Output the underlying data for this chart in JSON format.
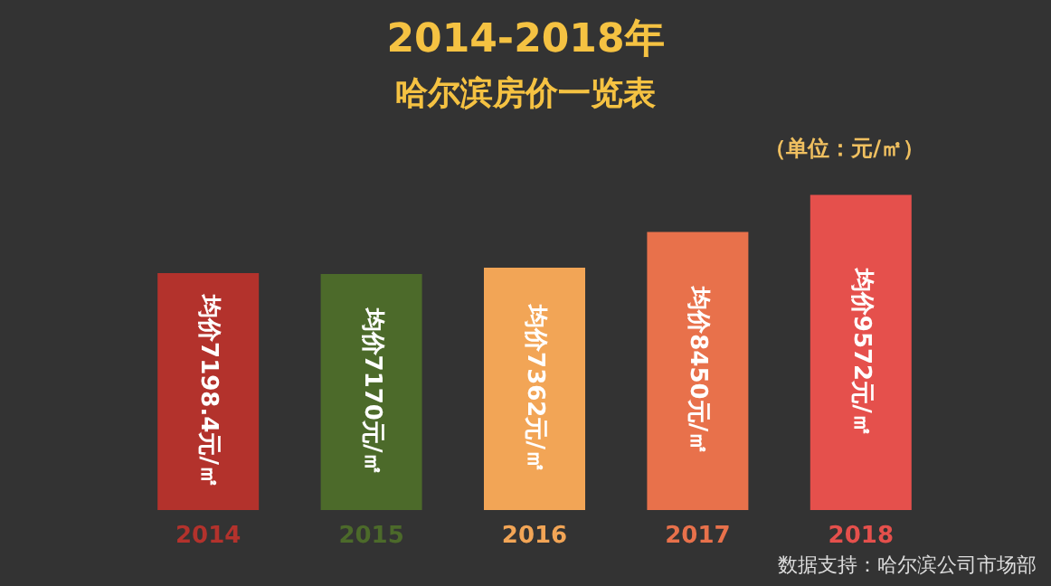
{
  "chart_data": {
    "type": "bar",
    "title": "2014-2018年",
    "subtitle": "哈尔滨房价一览表",
    "annotations": [
      "（单位：元/㎡）",
      "数据支持：哈尔滨公司市场部"
    ],
    "categories": [
      "2014",
      "2015",
      "2016",
      "2017",
      "2018"
    ],
    "values": [
      7198.4,
      7170,
      7362,
      8450,
      9572
    ],
    "colors": [
      "#b3322c",
      "#4c6a2a",
      "#f2a556",
      "#e8714b",
      "#e5504c"
    ],
    "value_labels": [
      "均价7198.4元/㎡",
      "均价7170元/㎡",
      "均价7362元/㎡",
      "均价8450元/㎡",
      "均价9572元/㎡"
    ]
  }
}
